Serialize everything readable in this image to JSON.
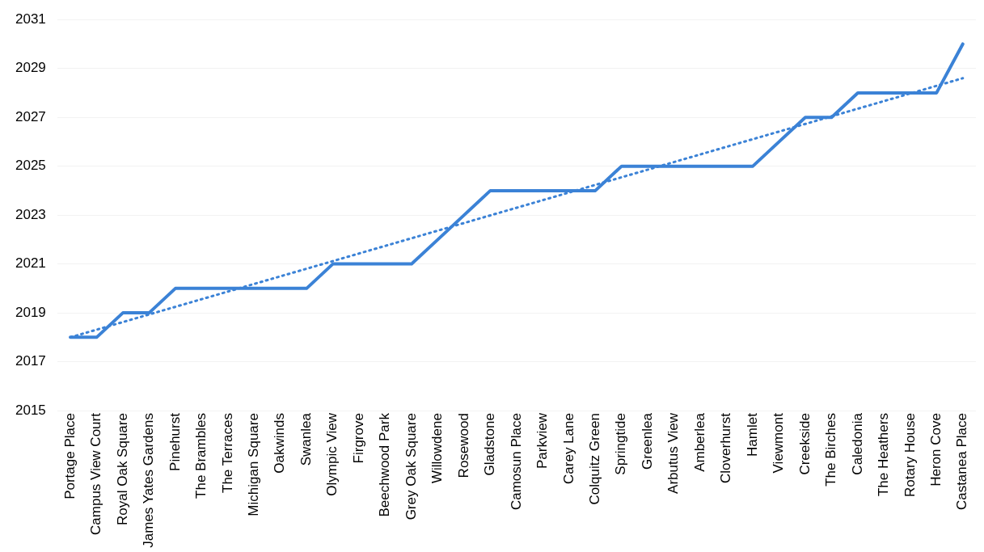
{
  "chart_data": {
    "type": "line",
    "categories": [
      "Portage Place",
      "Campus View Court",
      "Royal Oak Square",
      "James Yates Gardens",
      "Pinehurst",
      "The Brambles",
      "The Terraces",
      "Michigan Square",
      "Oakwinds",
      "Swanlea",
      "Olympic View",
      "Firgrove",
      "Beechwood Park",
      "Grey Oak Square",
      "Willowdene",
      "Rosewood",
      "Gladstone",
      "Camosun Place",
      "Parkview",
      "Carey Lane",
      "Colquitz Green",
      "Springtide",
      "Greenlea",
      "Arbutus View",
      "Amberlea",
      "Cloverhurst",
      "Hamlet",
      "Viewmont",
      "Creekside",
      "The Birches",
      "Caledonia",
      "The Heathers",
      "Rotary House",
      "Heron Cove",
      "Castanea Place"
    ],
    "series": [
      {
        "color": "#3b82d6",
        "line_style": "solid",
        "values": [
          2018,
          2018,
          2019,
          2019,
          2020,
          2020,
          2020,
          2020,
          2020,
          2020,
          2021,
          2021,
          2021,
          2021,
          2022,
          2023,
          2024,
          2024,
          2024,
          2024,
          2024,
          2025,
          2025,
          2025,
          2025,
          2025,
          2025,
          2026,
          2027,
          2027,
          2028,
          2028,
          2028,
          2028,
          2030
        ]
      },
      {
        "type": "line",
        "color": "#3b82d6",
        "line_style": "dotted",
        "x": [
          "Portage Place",
          "Castanea Place"
        ],
        "values": [
          2018.0,
          2028.6
        ]
      }
    ],
    "ylim": [
      2015,
      2031
    ],
    "yticks": [
      2015,
      2017,
      2019,
      2021,
      2023,
      2025,
      2027,
      2029,
      2031
    ],
    "grid": "y",
    "legend": false,
    "marker": "none"
  }
}
